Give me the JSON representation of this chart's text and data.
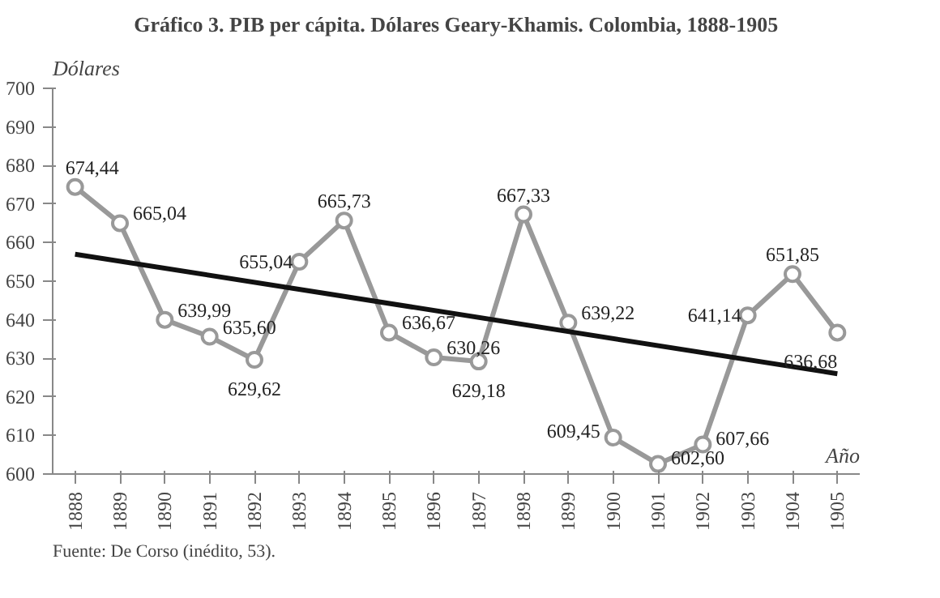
{
  "chart_data": {
    "type": "line",
    "title": "Gráfico 3. PIB per cápita. Dólares Geary-Khamis. Colombia, 1888-1905",
    "ylabel": "Dólares",
    "xlabel": "Año",
    "x": [
      1888,
      1889,
      1890,
      1891,
      1892,
      1893,
      1894,
      1895,
      1896,
      1897,
      1898,
      1899,
      1900,
      1901,
      1902,
      1903,
      1904,
      1905
    ],
    "series": [
      {
        "color": "#999999",
        "marker": "circle",
        "values": [
          674.44,
          665.04,
          639.99,
          635.6,
          629.62,
          655.04,
          665.73,
          636.67,
          630.26,
          629.18,
          667.33,
          639.22,
          609.45,
          602.6,
          607.66,
          641.14,
          651.85,
          636.68
        ],
        "value_labels": [
          "674,44",
          "665,04",
          "639,99",
          "635,60",
          "629,62",
          "655,04",
          "665,73",
          "636,67",
          "630,26",
          "629,18",
          "667,33",
          "639,22",
          "609,45",
          "602,60",
          "607,66",
          "641,14",
          "651,85",
          "636,68"
        ]
      },
      {
        "type": "line",
        "color": "#111111",
        "marker": "none",
        "x": [
          1888,
          1905
        ],
        "values": [
          657,
          626
        ]
      }
    ],
    "xlim": [
      1887.5,
      1905.5
    ],
    "xticks": [
      1888,
      1889,
      1890,
      1891,
      1892,
      1893,
      1894,
      1895,
      1896,
      1897,
      1898,
      1899,
      1900,
      1901,
      1902,
      1903,
      1904,
      1905
    ],
    "ylim": [
      600,
      700
    ],
    "yticks": [
      600,
      610,
      620,
      630,
      640,
      650,
      660,
      670,
      680,
      690,
      700
    ],
    "grid": false,
    "annotations": [
      "Fuente: De Corso (inédito, 53)."
    ]
  }
}
